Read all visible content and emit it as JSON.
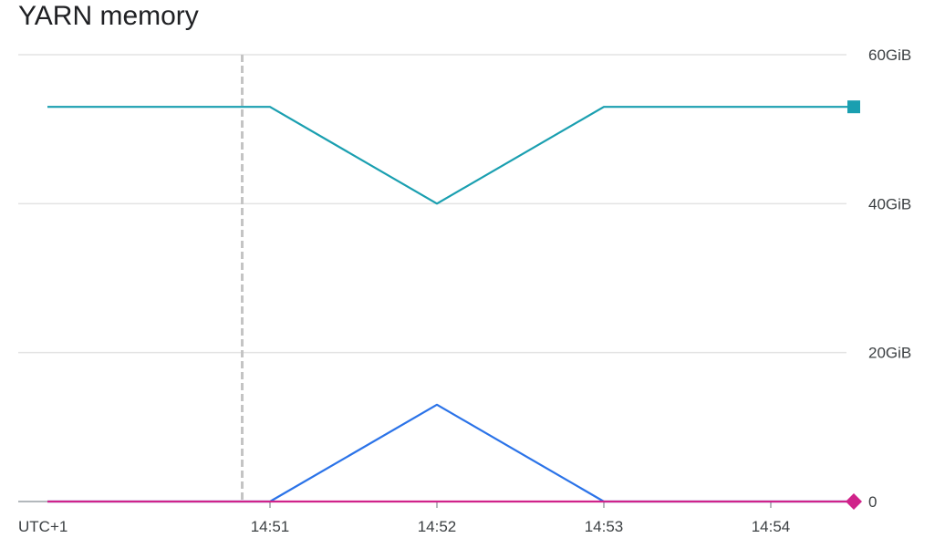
{
  "title": "YARN memory",
  "chart_data": {
    "type": "line",
    "title": "YARN memory",
    "xlabel": "",
    "ylabel": "",
    "timezone_label": "UTC+1",
    "x_ticks": [
      "14:51",
      "14:52",
      "14:53",
      "14:54"
    ],
    "y_ticks": [
      "0",
      "20GiB",
      "40GiB",
      "60GiB"
    ],
    "ylim": [
      0,
      60
    ],
    "y_unit": "GiB",
    "grid": true,
    "marker_time": "14:50:50",
    "series": [
      {
        "color": "#1a9fb0",
        "end_marker": "square",
        "x": [
          "14:49:40",
          "14:51",
          "14:52",
          "14:53",
          "14:54:30"
        ],
        "values": [
          53,
          53,
          40,
          53,
          53
        ]
      },
      {
        "color": "#2b73e8",
        "end_marker": "none",
        "x": [
          "14:49:40",
          "14:51",
          "14:52",
          "14:53",
          "14:54:30"
        ],
        "values": [
          0,
          0,
          13,
          0,
          0
        ]
      },
      {
        "color": "#d0238a",
        "end_marker": "diamond",
        "x": [
          "14:49:40",
          "14:51",
          "14:52",
          "14:53",
          "14:54:30"
        ],
        "values": [
          0,
          0,
          0,
          0,
          0
        ]
      }
    ]
  }
}
